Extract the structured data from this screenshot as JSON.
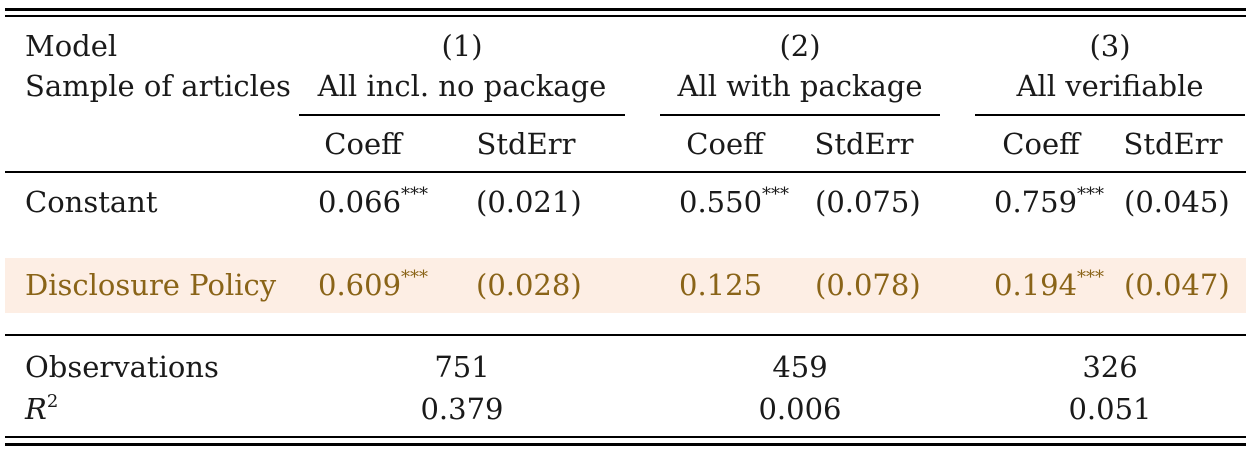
{
  "header": {
    "model_label": "Model",
    "sample_label": "Sample of articles",
    "columns": [
      {
        "number": "(1)",
        "sample": "All incl. no package",
        "coeff_label": "Coeff",
        "stderr_label": "StdErr"
      },
      {
        "number": "(2)",
        "sample": "All with package",
        "coeff_label": "Coeff",
        "stderr_label": "StdErr"
      },
      {
        "number": "(3)",
        "sample": "All verifiable",
        "coeff_label": "Coeff",
        "stderr_label": "StdErr"
      }
    ]
  },
  "rows": [
    {
      "label": "Constant",
      "highlighted": false,
      "cells": [
        {
          "coeff": "0.066",
          "stars": "***",
          "stderr": "(0.021)"
        },
        {
          "coeff": "0.550",
          "stars": "***",
          "stderr": "(0.075)"
        },
        {
          "coeff": "0.759",
          "stars": "***",
          "stderr": "(0.045)"
        }
      ]
    },
    {
      "label": "Disclosure Policy",
      "highlighted": true,
      "cells": [
        {
          "coeff": "0.609",
          "stars": "***",
          "stderr": "(0.028)"
        },
        {
          "coeff": "0.125",
          "stars": "",
          "stderr": "(0.078)"
        },
        {
          "coeff": "0.194",
          "stars": "***",
          "stderr": "(0.047)"
        }
      ]
    }
  ],
  "stats": {
    "observations_label": "Observations",
    "observations": [
      "751",
      "459",
      "326"
    ],
    "r2_label": "R",
    "r2_exponent": "2",
    "r2": [
      "0.379",
      "0.006",
      "0.051"
    ]
  },
  "colors": {
    "highlight_background": "#fdeee4",
    "highlight_text": "#8a6418",
    "text": "#1a1a1a"
  }
}
